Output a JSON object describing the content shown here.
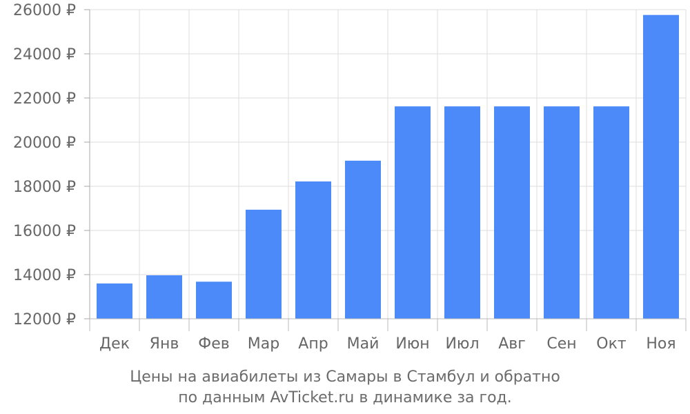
{
  "chart_data": {
    "type": "bar",
    "categories": [
      "Дек",
      "Янв",
      "Фев",
      "Мар",
      "Апр",
      "Май",
      "Июн",
      "Июл",
      "Авг",
      "Сен",
      "Окт",
      "Ноя"
    ],
    "values": [
      13600,
      13970,
      13680,
      16940,
      18220,
      19160,
      21620,
      21620,
      21620,
      21620,
      21620,
      25760
    ],
    "ylim": [
      12000,
      26000
    ],
    "y_ticks": [
      12000,
      14000,
      16000,
      18000,
      20000,
      22000,
      24000,
      26000
    ],
    "y_unit": "₽",
    "grid": true,
    "bar_color": "#4d8af9"
  },
  "caption": {
    "line1": "Цены на авиабилеты из Самары в Стамбул и обратно",
    "line2": "по данным AvTicket.ru в динамике за год."
  }
}
